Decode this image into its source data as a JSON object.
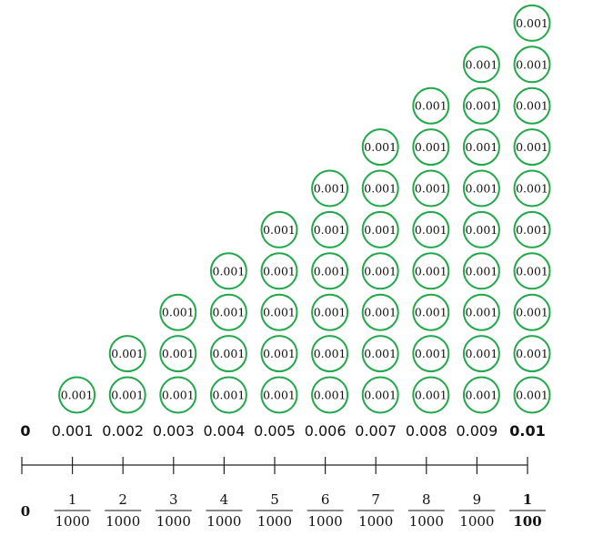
{
  "coin_label": "0.001",
  "coin_color": "#22a84a",
  "columns": [
    {
      "count": 1,
      "decimal": "0.001",
      "num": "1",
      "den": "1000"
    },
    {
      "count": 2,
      "decimal": "0.002",
      "num": "2",
      "den": "1000"
    },
    {
      "count": 3,
      "decimal": "0.003",
      "num": "3",
      "den": "1000"
    },
    {
      "count": 4,
      "decimal": "0.004",
      "num": "4",
      "den": "1000"
    },
    {
      "count": 5,
      "decimal": "0.005",
      "num": "5",
      "den": "1000"
    },
    {
      "count": 6,
      "decimal": "0.006",
      "num": "6",
      "den": "1000"
    },
    {
      "count": 7,
      "decimal": "0.007",
      "num": "7",
      "den": "1000"
    },
    {
      "count": 8,
      "decimal": "0.008",
      "num": "8",
      "den": "1000"
    },
    {
      "count": 9,
      "decimal": "0.009",
      "num": "9",
      "den": "1000"
    },
    {
      "count": 10,
      "decimal": "0.01",
      "num": "1",
      "den": "100",
      "bold": true
    }
  ],
  "zero_decimal": "0",
  "zero_fraction": "0"
}
